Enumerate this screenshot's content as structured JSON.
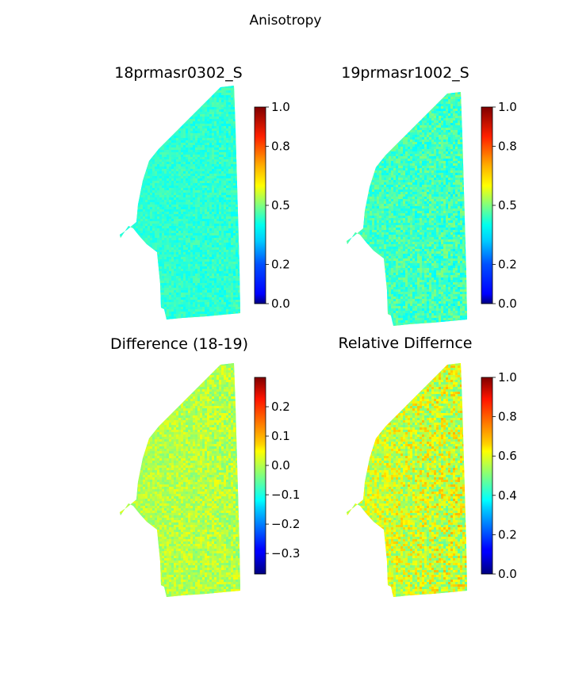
{
  "figure": {
    "title": "Anisotropy"
  },
  "chart_data": [
    {
      "type": "heatmap",
      "title": "18prmasr0302_S",
      "colormap": "jet",
      "clim": [
        0.0,
        1.0
      ],
      "colorbar_ticks": [
        "0.0",
        "0.2",
        "0.5",
        "0.8",
        "1.0"
      ],
      "colorbar_tick_values": [
        0.0,
        0.2,
        0.5,
        0.8,
        1.0
      ],
      "colorbar_scale": "nonlinear",
      "field_mean": 0.42,
      "field_spread": 0.03
    },
    {
      "type": "heatmap",
      "title": "19prmasr1002_S",
      "colormap": "jet",
      "clim": [
        0.0,
        1.0
      ],
      "colorbar_ticks": [
        "0.0",
        "0.2",
        "0.5",
        "0.8",
        "1.0"
      ],
      "colorbar_tick_values": [
        0.0,
        0.2,
        0.5,
        0.8,
        1.0
      ],
      "colorbar_scale": "nonlinear",
      "field_mean": 0.44,
      "field_spread": 0.05
    },
    {
      "type": "heatmap",
      "title": "Difference (18-19)",
      "colormap": "jet",
      "clim": [
        -0.37,
        0.3
      ],
      "colorbar_ticks": [
        "0.2",
        "0.1",
        "0.0",
        "−0.1",
        "−0.2",
        "−0.3"
      ],
      "colorbar_tick_values": [
        0.2,
        0.1,
        0.0,
        -0.1,
        -0.2,
        -0.3
      ],
      "colorbar_scale": "linear",
      "field_mean": 0.0,
      "field_spread": 0.03
    },
    {
      "type": "heatmap",
      "title": "Relative Differnce",
      "colormap": "jet",
      "clim": [
        0.0,
        1.0
      ],
      "colorbar_ticks": [
        "0.0",
        "0.2",
        "0.4",
        "0.6",
        "0.8",
        "1.0"
      ],
      "colorbar_tick_values": [
        0.0,
        0.2,
        0.4,
        0.6,
        0.8,
        1.0
      ],
      "colorbar_scale": "linear",
      "field_mean": 0.58,
      "field_spread": 0.08
    }
  ]
}
